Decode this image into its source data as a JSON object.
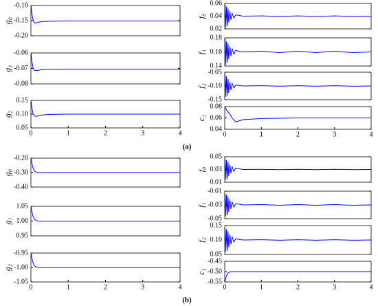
{
  "captions": [
    "(a)",
    "(b)"
  ],
  "chart_data": [
    {
      "type": "line",
      "ylabel": "g₀",
      "color": "#0000ff",
      "xlim": [
        0,
        4
      ],
      "ylim": [
        -0.2,
        -0.1
      ],
      "yticks": [
        {
          "value": -0.1,
          "label": "-0.10"
        },
        -0.15,
        {
          "value": -0.2,
          "label": "-0.20"
        }
      ],
      "x": [
        0,
        0.03,
        0.06,
        0.1,
        0.15,
        0.2,
        0.3,
        0.5,
        1,
        2,
        3,
        4
      ],
      "values": [
        -0.1,
        -0.13,
        -0.15,
        -0.158,
        -0.157,
        -0.155,
        -0.153,
        -0.152,
        -0.151,
        -0.151,
        -0.151,
        -0.151
      ]
    },
    {
      "type": "line",
      "ylabel": "g₁",
      "color": "#0000ff",
      "xlim": [
        0,
        4
      ],
      "ylim": [
        -0.08,
        -0.06
      ],
      "yticks": [
        -0.06,
        -0.07,
        -0.08
      ],
      "x": [
        0,
        0.03,
        0.06,
        0.1,
        0.15,
        0.2,
        0.3,
        0.5,
        1,
        2,
        3,
        4
      ],
      "values": [
        -0.06,
        -0.066,
        -0.07,
        -0.0713,
        -0.0714,
        -0.0712,
        -0.0708,
        -0.0706,
        -0.0705,
        -0.0705,
        -0.0705,
        -0.0705
      ]
    },
    {
      "type": "line",
      "ylabel": "g₂",
      "color": "#0000ff",
      "xlim": [
        0,
        4
      ],
      "ylim": [
        0.05,
        0.15
      ],
      "yticks": [
        0.15,
        {
          "value": 0.1,
          "label": "0.10"
        },
        0.05
      ],
      "xticks": [
        0,
        1,
        2,
        3,
        4
      ],
      "x": [
        0,
        0.03,
        0.06,
        0.1,
        0.15,
        0.2,
        0.3,
        0.5,
        1,
        2,
        3,
        4
      ],
      "values": [
        0.15,
        0.12,
        0.1,
        0.093,
        0.092,
        0.094,
        0.097,
        0.099,
        0.1,
        0.1,
        0.1,
        0.1
      ]
    },
    {
      "type": "line",
      "ylabel": "f₀",
      "color": "#0000ff",
      "xlim": [
        0,
        4
      ],
      "ylim": [
        0.02,
        0.06
      ],
      "yticks": [
        0.06,
        0.04,
        0.02
      ],
      "x": [
        0,
        0.01,
        0.03,
        0.05,
        0.07,
        0.09,
        0.11,
        0.14,
        0.17,
        0.2,
        0.25,
        0.3,
        0.5,
        1,
        1.5,
        2,
        2.5,
        3,
        3.5,
        4
      ],
      "values": [
        0.04,
        0.058,
        0.022,
        0.055,
        0.025,
        0.052,
        0.03,
        0.048,
        0.034,
        0.045,
        0.037,
        0.042,
        0.04,
        0.0404,
        0.0396,
        0.0404,
        0.0396,
        0.0404,
        0.0396,
        0.04
      ]
    },
    {
      "type": "line",
      "ylabel": "f₁",
      "color": "#0000ff",
      "xlim": [
        0,
        4
      ],
      "ylim": [
        0.14,
        0.18
      ],
      "yticks": [
        0.18,
        0.16,
        0.14
      ],
      "x": [
        0,
        0.01,
        0.03,
        0.05,
        0.07,
        0.09,
        0.11,
        0.14,
        0.17,
        0.2,
        0.25,
        0.3,
        0.5,
        1,
        1.5,
        2,
        2.5,
        3,
        3.5,
        4
      ],
      "values": [
        0.16,
        0.178,
        0.142,
        0.175,
        0.145,
        0.172,
        0.15,
        0.168,
        0.154,
        0.165,
        0.157,
        0.162,
        0.16,
        0.161,
        0.159,
        0.161,
        0.159,
        0.161,
        0.159,
        0.16
      ]
    },
    {
      "type": "line",
      "ylabel": "f₂",
      "color": "#0000ff",
      "xlim": [
        0,
        4
      ],
      "ylim": [
        -0.15,
        -0.05
      ],
      "yticks": [
        -0.05,
        {
          "value": -0.1,
          "label": "-0.10"
        },
        -0.15
      ],
      "x": [
        0,
        0.01,
        0.03,
        0.05,
        0.07,
        0.09,
        0.11,
        0.14,
        0.17,
        0.2,
        0.25,
        0.3,
        0.5,
        1,
        1.5,
        2,
        2.5,
        3,
        3.5,
        4
      ],
      "values": [
        -0.1,
        -0.06,
        -0.14,
        -0.065,
        -0.135,
        -0.075,
        -0.125,
        -0.085,
        -0.115,
        -0.09,
        -0.107,
        -0.097,
        -0.1,
        -0.099,
        -0.101,
        -0.099,
        -0.101,
        -0.099,
        -0.101,
        -0.1
      ]
    },
    {
      "type": "line",
      "ylabel": "c₁",
      "color": "#0000ff",
      "xlim": [
        0,
        4
      ],
      "ylim": [
        0.04,
        0.08
      ],
      "yticks": [
        0.08,
        0.06,
        0.04
      ],
      "xticks": [
        0,
        1,
        2,
        3,
        4
      ],
      "x": [
        0,
        0.03,
        0.06,
        0.1,
        0.15,
        0.2,
        0.3,
        0.5,
        1,
        2,
        3,
        4
      ],
      "values": [
        0.08,
        0.076,
        0.073,
        0.07,
        0.066,
        0.06,
        0.053,
        0.057,
        0.059,
        0.06,
        0.06,
        0.06
      ]
    },
    {
      "type": "line",
      "ylabel": "g₀",
      "color": "#0000ff",
      "xlim": [
        0,
        4
      ],
      "ylim": [
        -0.4,
        -0.2
      ],
      "yticks": [
        {
          "value": -0.2,
          "label": "-0.20"
        },
        {
          "value": -0.3,
          "label": "-0.30"
        },
        {
          "value": -0.4,
          "label": "-0.40"
        }
      ],
      "x": [
        0,
        0.03,
        0.06,
        0.1,
        0.15,
        0.2,
        0.3,
        0.5,
        1,
        2,
        3,
        4
      ],
      "values": [
        -0.2,
        -0.24,
        -0.27,
        -0.29,
        -0.298,
        -0.3,
        -0.3,
        -0.3,
        -0.3,
        -0.3,
        -0.3,
        -0.3
      ]
    },
    {
      "type": "line",
      "ylabel": "g₁",
      "color": "#0000ff",
      "xlim": [
        0,
        4
      ],
      "ylim": [
        0.95,
        1.05
      ],
      "yticks": [
        1.05,
        {
          "value": 1,
          "label": "1.00"
        },
        0.95
      ],
      "x": [
        0,
        0.03,
        0.06,
        0.1,
        0.15,
        0.2,
        0.3,
        0.5,
        1,
        2,
        3,
        4
      ],
      "values": [
        1.05,
        1.03,
        1.015,
        1.005,
        1.001,
        1,
        1,
        1,
        1,
        1,
        1,
        1
      ]
    },
    {
      "type": "line",
      "ylabel": "g₂",
      "color": "#0000ff",
      "xlim": [
        0,
        4
      ],
      "ylim": [
        -1.05,
        -0.95
      ],
      "yticks": [
        -0.95,
        {
          "value": -1,
          "label": "-1.00"
        },
        -1.05
      ],
      "xticks": [
        0,
        1,
        2,
        3,
        4
      ],
      "x": [
        0,
        0.03,
        0.06,
        0.1,
        0.15,
        0.2,
        0.3,
        0.5,
        1,
        2,
        3,
        4
      ],
      "values": [
        -0.95,
        -0.97,
        -0.985,
        -0.995,
        -0.999,
        -1,
        -1,
        -1,
        -1,
        -1,
        -1,
        -1
      ]
    },
    {
      "type": "line",
      "ylabel": "f₀",
      "color": "#0000ff",
      "xlim": [
        0,
        4
      ],
      "ylim": [
        0.01,
        0.05
      ],
      "yticks": [
        0.05,
        0.03,
        0.01
      ],
      "x": [
        0,
        0.01,
        0.03,
        0.05,
        0.07,
        0.09,
        0.11,
        0.14,
        0.17,
        0.2,
        0.25,
        0.3,
        0.5,
        1,
        1.5,
        2,
        2.5,
        3,
        3.5,
        4
      ],
      "values": [
        0.03,
        0.046,
        0.014,
        0.045,
        0.015,
        0.042,
        0.02,
        0.038,
        0.024,
        0.035,
        0.027,
        0.032,
        0.03,
        0.0302,
        0.0298,
        0.0302,
        0.0298,
        0.0302,
        0.0298,
        0.03
      ]
    },
    {
      "type": "line",
      "ylabel": "f₁",
      "color": "#0000ff",
      "xlim": [
        0,
        4
      ],
      "ylim": [
        -0.05,
        -0.01
      ],
      "yticks": [
        -0.01,
        -0.03,
        -0.05
      ],
      "x": [
        0,
        0.01,
        0.03,
        0.05,
        0.07,
        0.09,
        0.11,
        0.14,
        0.17,
        0.2,
        0.25,
        0.3,
        0.5,
        1,
        1.5,
        2,
        2.5,
        3,
        3.5,
        4
      ],
      "values": [
        -0.03,
        -0.014,
        -0.046,
        -0.015,
        -0.045,
        -0.018,
        -0.04,
        -0.022,
        -0.036,
        -0.025,
        -0.033,
        -0.028,
        -0.03,
        -0.0295,
        -0.0305,
        -0.0295,
        -0.0305,
        -0.0295,
        -0.0305,
        -0.03
      ]
    },
    {
      "type": "line",
      "ylabel": "f₂",
      "color": "#0000ff",
      "xlim": [
        0,
        4
      ],
      "ylim": [
        0.05,
        0.15
      ],
      "yticks": [
        0.15,
        {
          "value": 0.1,
          "label": "0.10"
        },
        0.05
      ],
      "x": [
        0,
        0.01,
        0.03,
        0.05,
        0.07,
        0.09,
        0.11,
        0.14,
        0.17,
        0.2,
        0.25,
        0.3,
        0.5,
        1,
        1.5,
        2,
        2.5,
        3,
        3.5,
        4
      ],
      "values": [
        0.1,
        0.14,
        0.06,
        0.137,
        0.063,
        0.13,
        0.075,
        0.12,
        0.085,
        0.112,
        0.093,
        0.104,
        0.1,
        0.101,
        0.099,
        0.101,
        0.099,
        0.101,
        0.099,
        0.1
      ]
    },
    {
      "type": "line",
      "ylabel": "c₁",
      "color": "#0000ff",
      "xlim": [
        0,
        4
      ],
      "ylim": [
        -0.55,
        -0.45
      ],
      "yticks": [
        -0.45,
        {
          "value": -0.5,
          "label": "-0.50"
        },
        -0.55
      ],
      "xticks": [
        0,
        1,
        2,
        3,
        4
      ],
      "x": [
        0,
        0.03,
        0.06,
        0.1,
        0.15,
        0.2,
        0.3,
        0.5,
        1,
        2,
        3,
        4
      ],
      "values": [
        -0.55,
        -0.53,
        -0.515,
        -0.505,
        -0.501,
        -0.5,
        -0.5,
        -0.5,
        -0.5,
        -0.5,
        -0.5,
        -0.5
      ]
    }
  ]
}
